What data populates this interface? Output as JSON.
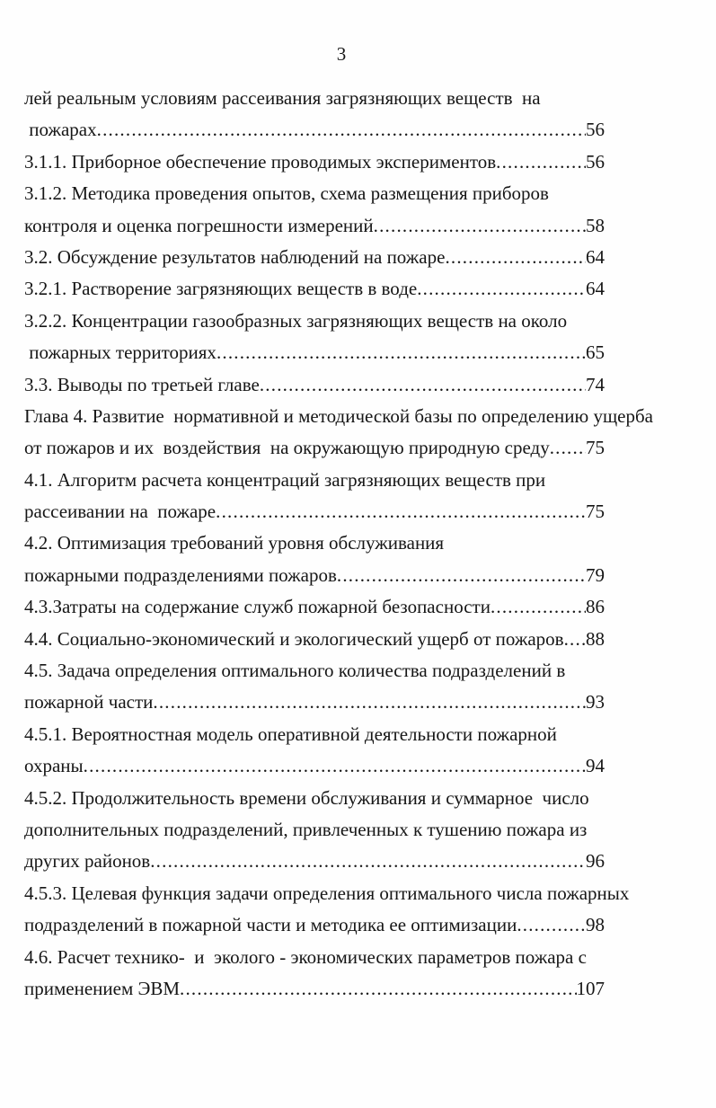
{
  "page": {
    "number": "3"
  },
  "toc": {
    "lines": [
      {
        "text": "лей реальным условиям рассеивания загрязняющих веществ  на",
        "page": ""
      },
      {
        "text": " пожарах",
        "page": "56"
      },
      {
        "text": "3.1.1. Приборное обеспечение проводимых экспериментов",
        "page": "56"
      },
      {
        "text": "3.1.2. Методика проведения опытов, схема размещения приборов",
        "page": ""
      },
      {
        "text": "контроля и оценка погрешности измерений",
        "page": "58"
      },
      {
        "text": "3.2. Обсуждение результатов наблюдений на пожаре",
        "page": "64"
      },
      {
        "text": "3.2.1. Растворение загрязняющих веществ в воде",
        "page": "64"
      },
      {
        "text": "3.2.2. Концентрации газообразных загрязняющих веществ на около",
        "page": ""
      },
      {
        "text": " пожарных территориях",
        "page": "65"
      },
      {
        "text": "3.3. Выводы по третьей главе",
        "page": "74"
      },
      {
        "text": "Глава 4. Развитие  нормативной и методической базы по определению ущерба",
        "page": ""
      },
      {
        "text": "от пожаров и их  воздействия  на окружающую природную среду",
        "page": "75"
      },
      {
        "text": "4.1. Алгоритм расчета концентраций загрязняющих веществ при",
        "page": ""
      },
      {
        "text": "рассеивании на  пожаре",
        "page": "75"
      },
      {
        "text": "4.2. Оптимизация требований уровня обслуживания",
        "page": ""
      },
      {
        "text": "пожарными подразделениями пожаров",
        "page": "79"
      },
      {
        "text": "4.3.Затраты на содержание служб пожарной безопасности",
        "page": "86"
      },
      {
        "text": "4.4. Социально-экономический и экологический ущерб от пожаров",
        "page": "88"
      },
      {
        "text": "4.5. Задача определения оптимального количества подразделений в",
        "page": ""
      },
      {
        "text": "пожарной части",
        "page": "93"
      },
      {
        "text": "4.5.1. Вероятностная модель оперативной деятельности пожарной",
        "page": ""
      },
      {
        "text": "охраны",
        "page": "94"
      },
      {
        "text": "4.5.2. Продолжительность времени обслуживания и суммарное  число",
        "page": ""
      },
      {
        "text": "дополнительных подразделений, привлеченных к тушению пожара из",
        "page": ""
      },
      {
        "text": "других районов",
        "page": "96"
      },
      {
        "text": "4.5.3. Целевая функция задачи определения оптимального числа пожарных",
        "page": ""
      },
      {
        "text": "подразделений в пожарной части и методика ее оптимизации",
        "page": "98"
      },
      {
        "text": "4.6. Расчет технико-  и  эколого - экономических параметров пожара с",
        "page": ""
      },
      {
        "text": "применением ЭВМ",
        "page": "107"
      }
    ]
  }
}
